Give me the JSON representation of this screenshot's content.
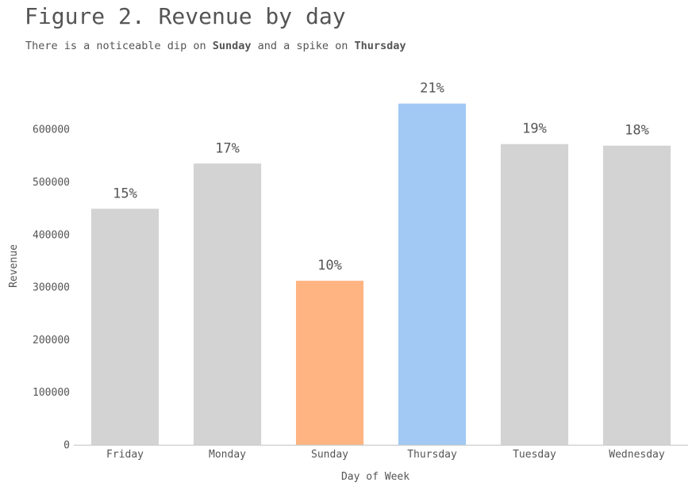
{
  "figure": {
    "title": "Figure 2. Revenue by day",
    "subtitle_parts": [
      "There is a noticeable dip on ",
      "Sunday",
      " and a spike on ",
      "Thursday"
    ]
  },
  "chart_data": {
    "type": "bar",
    "categories": [
      "Friday",
      "Monday",
      "Sunday",
      "Thursday",
      "Tuesday",
      "Wednesday"
    ],
    "values": [
      449000,
      535000,
      312000,
      649000,
      572000,
      569000
    ],
    "data_labels": [
      "15%",
      "17%",
      "10%",
      "21%",
      "19%",
      "18%"
    ],
    "colors": [
      "#d3d3d3",
      "#d3d3d3",
      "#ffb482",
      "#a1c9f4",
      "#d3d3d3",
      "#d3d3d3"
    ],
    "xlabel": "Day of Week",
    "ylabel": "Revenue",
    "ylim": [
      0,
      650000
    ],
    "yticks": [
      0,
      100000,
      200000,
      300000,
      400000,
      500000,
      600000
    ],
    "grid": false,
    "axis_color": "#cccccc",
    "text_color": "#555555"
  }
}
